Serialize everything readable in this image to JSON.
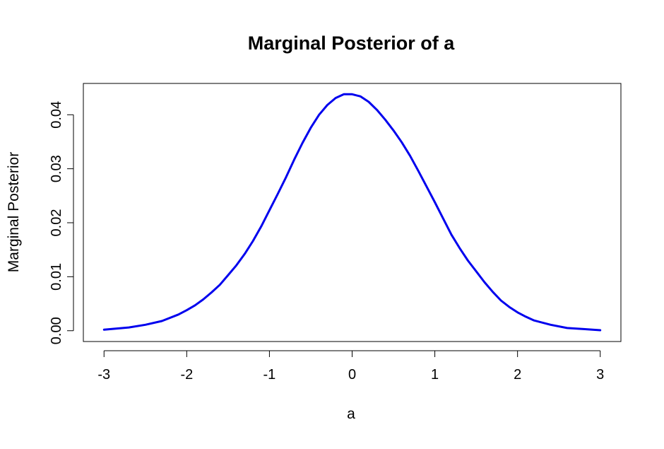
{
  "chart_data": {
    "type": "line",
    "title": "Marginal Posterior of a",
    "xlabel": "a",
    "ylabel": "Marginal Posterior",
    "xlim": [
      -3.25,
      3.25
    ],
    "ylim": [
      -0.002,
      0.0458
    ],
    "x_ticks": [
      -3,
      -2,
      -1,
      0,
      1,
      2,
      3
    ],
    "x_tick_labels": [
      "-3",
      "-2",
      "-1",
      "0",
      "1",
      "2",
      "3"
    ],
    "y_ticks": [
      0,
      0.01,
      0.02,
      0.03,
      0.04
    ],
    "y_tick_labels": [
      "0.00",
      "0.01",
      "0.02",
      "0.03",
      "0.04"
    ],
    "grid": false,
    "series": [
      {
        "color": "#0000ee",
        "x": [
          -3.0,
          -2.7,
          -2.5,
          -2.3,
          -2.1,
          -2.0,
          -1.9,
          -1.8,
          -1.7,
          -1.6,
          -1.5,
          -1.4,
          -1.3,
          -1.2,
          -1.1,
          -1.0,
          -0.9,
          -0.8,
          -0.7,
          -0.6,
          -0.5,
          -0.4,
          -0.3,
          -0.2,
          -0.1,
          0.0,
          0.1,
          0.2,
          0.3,
          0.4,
          0.5,
          0.6,
          0.7,
          0.8,
          0.9,
          1.0,
          1.1,
          1.2,
          1.3,
          1.4,
          1.5,
          1.6,
          1.7,
          1.8,
          1.9,
          2.0,
          2.1,
          2.2,
          2.4,
          2.6,
          2.8,
          3.0
        ],
        "y": [
          0.0002,
          0.0006,
          0.0011,
          0.0018,
          0.003,
          0.0038,
          0.0047,
          0.0058,
          0.0071,
          0.0085,
          0.0103,
          0.0121,
          0.0142,
          0.0166,
          0.0193,
          0.0223,
          0.0253,
          0.0284,
          0.0317,
          0.0348,
          0.0376,
          0.04,
          0.0418,
          0.0431,
          0.0438,
          0.0438,
          0.0434,
          0.0424,
          0.0409,
          0.0391,
          0.0371,
          0.0349,
          0.0324,
          0.0296,
          0.0267,
          0.0238,
          0.0208,
          0.0178,
          0.0153,
          0.013,
          0.011,
          0.009,
          0.0072,
          0.0056,
          0.0044,
          0.0034,
          0.0026,
          0.0019,
          0.0011,
          0.0005,
          0.0003,
          0.0001
        ]
      }
    ]
  }
}
